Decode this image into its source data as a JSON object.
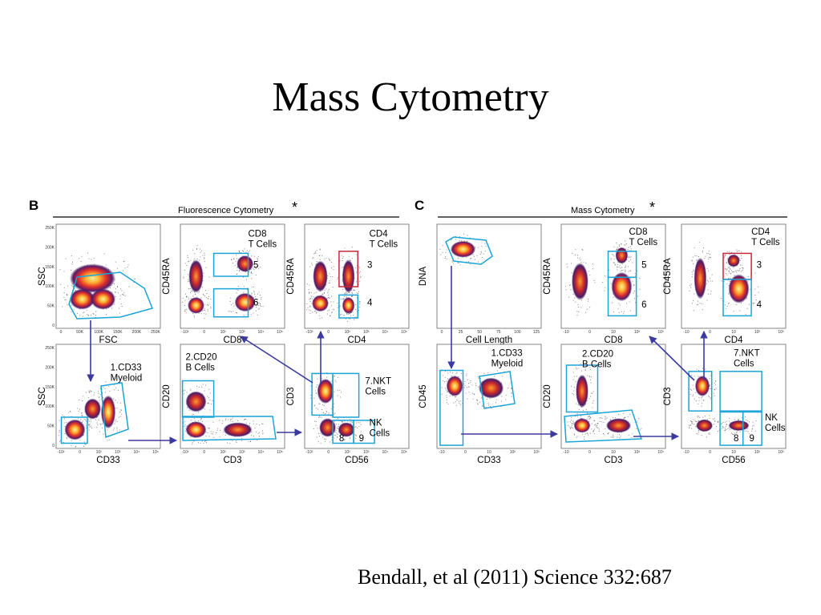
{
  "slide": {
    "title": "Mass Cytometry",
    "citation": "Bendall, et al (2011) Science 332:687"
  },
  "figure": {
    "colors": {
      "gate": "#1ba4d8",
      "gate_alt": "#c8283c",
      "arrow": "#3a3aa0",
      "cell_dense": "#ffe14d",
      "cell_mid": "#e8402a",
      "cell_low": "#4a1a6a"
    },
    "panel_b": {
      "letter": "B",
      "header": "Fluorescence Cytometry",
      "asterisk": "*",
      "plots": [
        {
          "xlabel": "FSC",
          "ylabel": "SSC",
          "xticks": [
            "0",
            "50K",
            "100K",
            "150K",
            "200K",
            "250K"
          ],
          "yticks": [
            "250K",
            "200K",
            "150K",
            "100K",
            "50K",
            "0"
          ]
        },
        {
          "xlabel": "CD8",
          "ylabel": "CD45RA",
          "gates": [
            "CD8",
            "T Cells",
            "5",
            "6"
          ],
          "xticks": [
            "-10²",
            "0",
            "10²",
            "10³",
            "10⁴",
            "10⁵"
          ]
        },
        {
          "xlabel": "CD4",
          "ylabel": "CD45RA",
          "gates": [
            "CD4",
            "T Cells",
            "3",
            "4"
          ],
          "xticks": [
            "-10²",
            "0",
            "10²",
            "10³",
            "10⁴",
            "10⁵"
          ]
        },
        {
          "xlabel": "CD33",
          "ylabel": "SSC",
          "gates": [
            "1.CD33",
            "Myeloid"
          ],
          "xticks": [
            "-10²",
            "0",
            "10²",
            "10³",
            "10⁴",
            "10⁵"
          ],
          "yticks": [
            "250K",
            "200K",
            "150K",
            "100K",
            "50K",
            "0"
          ]
        },
        {
          "xlabel": "CD3",
          "ylabel": "CD20",
          "gates": [
            "2.CD20",
            "B Cells"
          ],
          "xticks": [
            "-10²",
            "0",
            "10²",
            "10³",
            "10⁴",
            "10⁵"
          ]
        },
        {
          "xlabel": "CD56",
          "ylabel": "CD3",
          "gates": [
            "7.NKT",
            "Cells",
            "NK",
            "Cells",
            "8",
            "9"
          ],
          "xticks": [
            "-10²",
            "0",
            "10²",
            "10³",
            "10⁴",
            "10⁵"
          ]
        }
      ]
    },
    "panel_c": {
      "letter": "C",
      "header": "Mass Cytometry",
      "asterisk": "*",
      "plots": [
        {
          "xlabel": "Cell Length",
          "ylabel": "DNA",
          "xticks": [
            "0",
            "25",
            "50",
            "75",
            "100",
            "125"
          ]
        },
        {
          "xlabel": "CD8",
          "ylabel": "CD45RA",
          "gates": [
            "CD8",
            "T Cells",
            "5",
            "6"
          ],
          "xticks": [
            "-10",
            "0",
            "10",
            "10²",
            "10³"
          ]
        },
        {
          "xlabel": "CD4",
          "ylabel": "CD45RA",
          "gates": [
            "CD4",
            "T Cells",
            "3",
            "4"
          ],
          "xticks": [
            "-10",
            "0",
            "10",
            "10²",
            "10³"
          ]
        },
        {
          "xlabel": "CD33",
          "ylabel": "CD45",
          "gates": [
            "1.CD33",
            "Myeloid"
          ],
          "xticks": [
            "-10",
            "0",
            "10",
            "10²",
            "10³"
          ]
        },
        {
          "xlabel": "CD3",
          "ylabel": "CD20",
          "gates": [
            "2.CD20",
            "B Cells"
          ],
          "xticks": [
            "-10",
            "0",
            "10",
            "10²",
            "10³"
          ]
        },
        {
          "xlabel": "CD56",
          "ylabel": "CD3",
          "gates": [
            "7.NKT",
            "Cells",
            "NK",
            "Cells",
            "8",
            "9"
          ],
          "xticks": [
            "-10",
            "0",
            "10",
            "10²",
            "10³"
          ]
        }
      ]
    }
  }
}
